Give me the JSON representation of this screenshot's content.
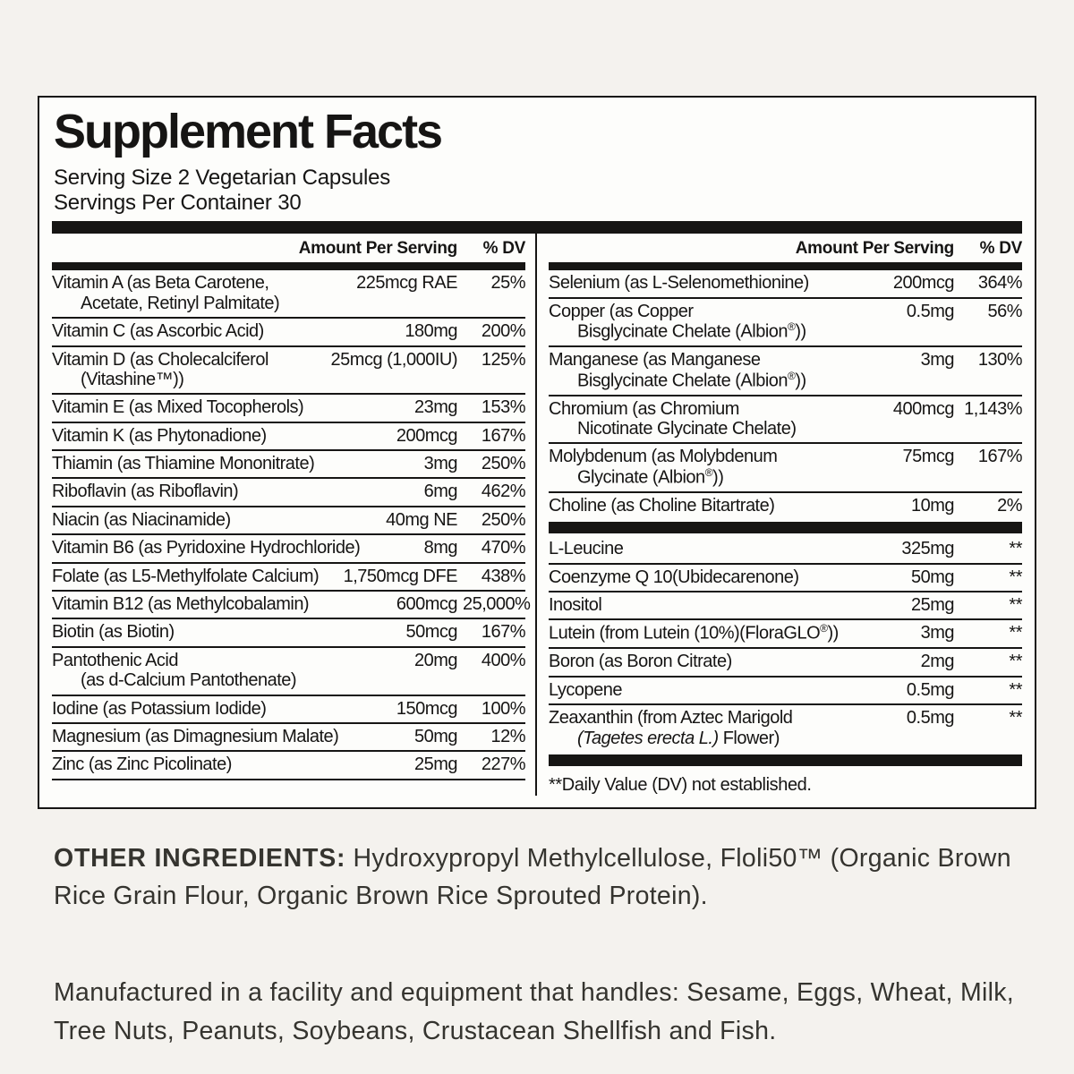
{
  "theme": {
    "page_bg": "#f4f2ee",
    "panel_bg": "#fdfdfb",
    "ink": "#161514",
    "footer_ink": "#35342f"
  },
  "panel": {
    "title": "Supplement Facts",
    "serving_size": "Serving Size 2 Vegetarian Capsules",
    "servings_per_container": "Servings Per Container 30",
    "columns": [
      {
        "header": {
          "amount": "Amount Per Serving",
          "dv": "% DV"
        },
        "end_rule": true,
        "rows": [
          {
            "lines": [
              "Vitamin A (as Beta Carotene,",
              "Acetate, Retinyl Palmitate)"
            ],
            "amount": "225mcg RAE",
            "dv": "25%"
          },
          {
            "lines": [
              "Vitamin C (as Ascorbic Acid)"
            ],
            "amount": "180mg",
            "dv": "200%"
          },
          {
            "lines": [
              "Vitamin D (as Cholecalciferol",
              "(Vitashine™))"
            ],
            "amount": "25mcg (1,000IU)",
            "dv": "125%"
          },
          {
            "lines": [
              "Vitamin E (as Mixed Tocopherols)"
            ],
            "amount": "23mg",
            "dv": "153%"
          },
          {
            "lines": [
              "Vitamin K (as Phytonadione)"
            ],
            "amount": "200mcg",
            "dv": "167%"
          },
          {
            "lines": [
              "Thiamin (as Thiamine Mononitrate)"
            ],
            "amount": "3mg",
            "dv": "250%"
          },
          {
            "lines": [
              "Riboflavin (as Riboflavin)"
            ],
            "amount": "6mg",
            "dv": "462%"
          },
          {
            "lines": [
              "Niacin (as Niacinamide)"
            ],
            "amount": "40mg NE",
            "dv": "250%"
          },
          {
            "lines": [
              "Vitamin B6 (as Pyridoxine Hydrochloride)"
            ],
            "amount": "8mg",
            "dv": "470%"
          },
          {
            "lines": [
              "Folate (as L5-Methylfolate Calcium)"
            ],
            "amount": "1,750mcg DFE",
            "dv": "438%"
          },
          {
            "lines": [
              "Vitamin B12 (as Methylcobalamin)"
            ],
            "amount": "600mcg",
            "dv": "25,000%"
          },
          {
            "lines": [
              "Biotin (as Biotin)"
            ],
            "amount": "50mcg",
            "dv": "167%"
          },
          {
            "lines": [
              "Pantothenic Acid",
              "(as d-Calcium Pantothenate)"
            ],
            "amount": "20mg",
            "dv": "400%"
          },
          {
            "lines": [
              "Iodine (as Potassium Iodide)"
            ],
            "amount": "150mcg",
            "dv": "100%"
          },
          {
            "lines": [
              "Magnesium (as Dimagnesium Malate)"
            ],
            "amount": "50mg",
            "dv": "12%"
          },
          {
            "lines": [
              "Zinc (as Zinc Picolinate)"
            ],
            "amount": "25mg",
            "dv": "227%"
          }
        ]
      },
      {
        "header": {
          "amount": "Amount Per Serving",
          "dv": "% DV"
        },
        "footnote": "**Daily Value (DV) not established.",
        "rows": [
          {
            "lines": [
              "Selenium (as L-Selenomethionine)"
            ],
            "amount": "200mcg",
            "dv": "364%"
          },
          {
            "lines": [
              "Copper (as Copper",
              [
                {
                  "t": "Bisglycinate Chelate (Albion"
                },
                {
                  "t": "®",
                  "sup": true
                },
                {
                  "t": "))"
                }
              ]
            ],
            "amount": "0.5mg",
            "dv": "56%"
          },
          {
            "lines": [
              "Manganese (as Manganese",
              [
                {
                  "t": "Bisglycinate Chelate (Albion"
                },
                {
                  "t": "®",
                  "sup": true
                },
                {
                  "t": "))"
                }
              ]
            ],
            "amount": "3mg",
            "dv": "130%"
          },
          {
            "lines": [
              "Chromium (as Chromium",
              "Nicotinate Glycinate Chelate)"
            ],
            "amount": "400mcg",
            "dv": "1,143%"
          },
          {
            "lines": [
              "Molybdenum (as Molybdenum",
              [
                {
                  "t": "Glycinate (Albion"
                },
                {
                  "t": "®",
                  "sup": true
                },
                {
                  "t": "))"
                }
              ]
            ],
            "amount": "75mcg",
            "dv": "167%"
          },
          {
            "lines": [
              "Choline (as Choline Bitartrate)"
            ],
            "amount": "10mg",
            "dv": "2%",
            "bar_after": true
          },
          {
            "lines": [
              "L-Leucine"
            ],
            "amount": "325mg",
            "dv": "**"
          },
          {
            "lines": [
              "Coenzyme Q 10(Ubidecarenone)"
            ],
            "amount": "50mg",
            "dv": "**"
          },
          {
            "lines": [
              "Inositol"
            ],
            "amount": "25mg",
            "dv": "**"
          },
          {
            "lines": [
              [
                {
                  "t": "Lutein (from Lutein (10%)(FloraGLO"
                },
                {
                  "t": "®",
                  "sup": true
                },
                {
                  "t": "))"
                }
              ]
            ],
            "amount": "3mg",
            "dv": "**"
          },
          {
            "lines": [
              "Boron (as Boron Citrate)"
            ],
            "amount": "2mg",
            "dv": "**"
          },
          {
            "lines": [
              "Lycopene"
            ],
            "amount": "0.5mg",
            "dv": "**"
          },
          {
            "lines": [
              "Zeaxanthin (from Aztec Marigold",
              [
                {
                  "t": "(Tagetes erecta L.)",
                  "i": true
                },
                {
                  "t": " Flower)"
                }
              ]
            ],
            "amount": "0.5mg",
            "dv": "**",
            "bar_after": true
          }
        ]
      }
    ]
  },
  "footer": {
    "other_ingredients_label": "OTHER INGREDIENTS:",
    "other_ingredients_text": " Hydroxypropyl Methylcellulose, Floli50™ (Organic Brown Rice Grain Flour, Organic Brown Rice Sprouted Protein).",
    "allergen_text": "Manufactured in a facility and equipment that handles: Sesame, Eggs, Wheat, Milk, Tree Nuts, Peanuts, Soybeans, Crustacean Shellfish and Fish."
  }
}
